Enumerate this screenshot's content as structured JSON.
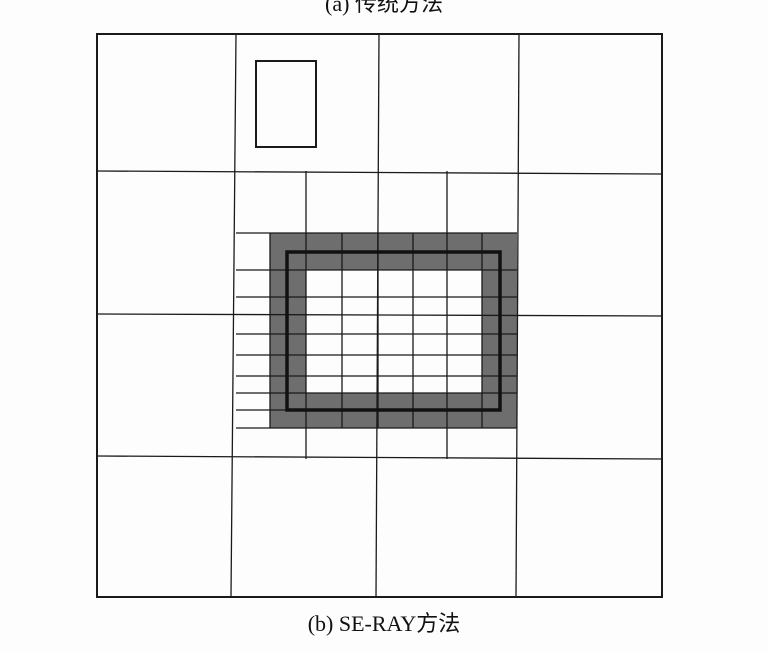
{
  "captions": {
    "top": "(a) 传统方法",
    "bottom": "(b) SE-RAY方法"
  },
  "colors": {
    "line": "#1a1a1a",
    "shaded": "#6e6e6e",
    "background": "#fdfdfd"
  }
}
